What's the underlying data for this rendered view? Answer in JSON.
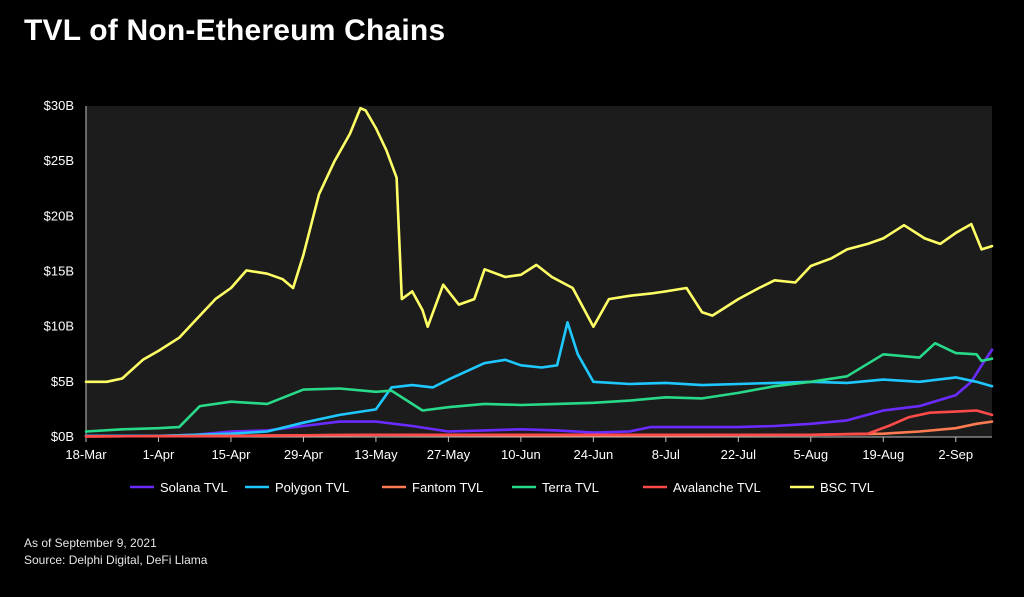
{
  "page": {
    "title": "TVL of Non-Ethereum Chains",
    "footnote_date": "As of September 9, 2021",
    "footnote_source": "Source: Delphi Digital, DeFi Llama"
  },
  "chart_data": {
    "type": "line",
    "title": "TVL of Non-Ethereum Chains",
    "xlabel": "",
    "ylabel": "",
    "ylim": [
      0,
      30
    ],
    "y_unit": "$B (billions USD)",
    "y_ticks": [
      "$0B",
      "$5B",
      "$10B",
      "$15B",
      "$20B",
      "$25B",
      "$30B"
    ],
    "x_ticks": [
      "18-Mar",
      "1-Apr",
      "15-Apr",
      "29-Apr",
      "13-May",
      "27-May",
      "10-Jun",
      "24-Jun",
      "8-Jul",
      "22-Jul",
      "5-Aug",
      "19-Aug",
      "2-Sep"
    ],
    "x_range": [
      "2021-03-18",
      "2021-09-09"
    ],
    "grid": false,
    "legend_position": "bottom",
    "series": [
      {
        "name": "Solana TVL",
        "color": "#6a2bff",
        "points": [
          [
            "2021-03-18",
            0.1
          ],
          [
            "2021-04-01",
            0.1
          ],
          [
            "2021-04-08",
            0.2
          ],
          [
            "2021-04-15",
            0.5
          ],
          [
            "2021-04-22",
            0.6
          ],
          [
            "2021-04-29",
            1.0
          ],
          [
            "2021-05-06",
            1.4
          ],
          [
            "2021-05-13",
            1.4
          ],
          [
            "2021-05-20",
            1.0
          ],
          [
            "2021-05-27",
            0.5
          ],
          [
            "2021-06-03",
            0.6
          ],
          [
            "2021-06-10",
            0.7
          ],
          [
            "2021-06-17",
            0.6
          ],
          [
            "2021-06-24",
            0.4
          ],
          [
            "2021-07-01",
            0.5
          ],
          [
            "2021-07-05",
            0.9
          ],
          [
            "2021-07-15",
            0.9
          ],
          [
            "2021-07-22",
            0.9
          ],
          [
            "2021-07-29",
            1.0
          ],
          [
            "2021-08-05",
            1.2
          ],
          [
            "2021-08-12",
            1.5
          ],
          [
            "2021-08-19",
            2.4
          ],
          [
            "2021-08-26",
            2.8
          ],
          [
            "2021-09-02",
            3.8
          ],
          [
            "2021-09-05",
            5.0
          ],
          [
            "2021-09-07",
            6.5
          ],
          [
            "2021-09-09",
            7.9
          ]
        ]
      },
      {
        "name": "Polygon TVL",
        "color": "#1ec8ff",
        "points": [
          [
            "2021-03-18",
            0.1
          ],
          [
            "2021-04-01",
            0.1
          ],
          [
            "2021-04-15",
            0.3
          ],
          [
            "2021-04-22",
            0.5
          ],
          [
            "2021-04-29",
            1.3
          ],
          [
            "2021-05-06",
            2.0
          ],
          [
            "2021-05-13",
            2.5
          ],
          [
            "2021-05-16",
            4.5
          ],
          [
            "2021-05-20",
            4.7
          ],
          [
            "2021-05-24",
            4.5
          ],
          [
            "2021-05-27",
            5.2
          ],
          [
            "2021-06-03",
            6.7
          ],
          [
            "2021-06-07",
            7.0
          ],
          [
            "2021-06-10",
            6.5
          ],
          [
            "2021-06-14",
            6.3
          ],
          [
            "2021-06-17",
            6.5
          ],
          [
            "2021-06-19",
            10.4
          ],
          [
            "2021-06-21",
            7.5
          ],
          [
            "2021-06-24",
            5.0
          ],
          [
            "2021-07-01",
            4.8
          ],
          [
            "2021-07-08",
            4.9
          ],
          [
            "2021-07-15",
            4.7
          ],
          [
            "2021-07-22",
            4.8
          ],
          [
            "2021-07-29",
            4.9
          ],
          [
            "2021-08-05",
            5.0
          ],
          [
            "2021-08-12",
            4.9
          ],
          [
            "2021-08-19",
            5.2
          ],
          [
            "2021-08-26",
            5.0
          ],
          [
            "2021-09-02",
            5.4
          ],
          [
            "2021-09-06",
            5.0
          ],
          [
            "2021-09-09",
            4.6
          ]
        ]
      },
      {
        "name": "Fantom TVL",
        "color": "#ff7b52",
        "points": [
          [
            "2021-03-18",
            0.05
          ],
          [
            "2021-04-15",
            0.1
          ],
          [
            "2021-05-13",
            0.2
          ],
          [
            "2021-06-10",
            0.15
          ],
          [
            "2021-07-08",
            0.15
          ],
          [
            "2021-08-05",
            0.2
          ],
          [
            "2021-08-19",
            0.3
          ],
          [
            "2021-08-26",
            0.5
          ],
          [
            "2021-09-02",
            0.8
          ],
          [
            "2021-09-06",
            1.2
          ],
          [
            "2021-09-09",
            1.4
          ]
        ]
      },
      {
        "name": "Terra TVL",
        "color": "#28d98a",
        "points": [
          [
            "2021-03-18",
            0.5
          ],
          [
            "2021-03-25",
            0.7
          ],
          [
            "2021-04-01",
            0.8
          ],
          [
            "2021-04-05",
            0.9
          ],
          [
            "2021-04-09",
            2.8
          ],
          [
            "2021-04-15",
            3.2
          ],
          [
            "2021-04-22",
            3.0
          ],
          [
            "2021-04-29",
            4.3
          ],
          [
            "2021-05-06",
            4.4
          ],
          [
            "2021-05-13",
            4.1
          ],
          [
            "2021-05-16",
            4.2
          ],
          [
            "2021-05-20",
            3.0
          ],
          [
            "2021-05-22",
            2.4
          ],
          [
            "2021-05-27",
            2.7
          ],
          [
            "2021-06-03",
            3.0
          ],
          [
            "2021-06-10",
            2.9
          ],
          [
            "2021-06-17",
            3.0
          ],
          [
            "2021-06-24",
            3.1
          ],
          [
            "2021-07-01",
            3.3
          ],
          [
            "2021-07-08",
            3.6
          ],
          [
            "2021-07-15",
            3.5
          ],
          [
            "2021-07-22",
            4.0
          ],
          [
            "2021-07-29",
            4.6
          ],
          [
            "2021-08-05",
            5.0
          ],
          [
            "2021-08-12",
            5.5
          ],
          [
            "2021-08-19",
            7.5
          ],
          [
            "2021-08-26",
            7.2
          ],
          [
            "2021-08-29",
            8.5
          ],
          [
            "2021-09-02",
            7.6
          ],
          [
            "2021-09-06",
            7.5
          ],
          [
            "2021-09-07",
            6.9
          ],
          [
            "2021-09-09",
            7.1
          ]
        ]
      },
      {
        "name": "Avalanche TVL",
        "color": "#ff4a4a",
        "points": [
          [
            "2021-03-18",
            0.05
          ],
          [
            "2021-04-15",
            0.1
          ],
          [
            "2021-05-13",
            0.2
          ],
          [
            "2021-06-10",
            0.2
          ],
          [
            "2021-07-08",
            0.2
          ],
          [
            "2021-08-05",
            0.2
          ],
          [
            "2021-08-16",
            0.3
          ],
          [
            "2021-08-20",
            1.0
          ],
          [
            "2021-08-24",
            1.8
          ],
          [
            "2021-08-28",
            2.2
          ],
          [
            "2021-09-02",
            2.3
          ],
          [
            "2021-09-06",
            2.4
          ],
          [
            "2021-09-09",
            2.0
          ]
        ]
      },
      {
        "name": "BSC TVL",
        "color": "#ffff66",
        "points": [
          [
            "2021-03-18",
            5.0
          ],
          [
            "2021-03-22",
            5.0
          ],
          [
            "2021-03-25",
            5.3
          ],
          [
            "2021-03-29",
            7.0
          ],
          [
            "2021-04-01",
            7.8
          ],
          [
            "2021-04-05",
            9.0
          ],
          [
            "2021-04-08",
            10.5
          ],
          [
            "2021-04-12",
            12.5
          ],
          [
            "2021-04-15",
            13.5
          ],
          [
            "2021-04-18",
            15.1
          ],
          [
            "2021-04-22",
            14.8
          ],
          [
            "2021-04-25",
            14.3
          ],
          [
            "2021-04-27",
            13.5
          ],
          [
            "2021-04-29",
            16.5
          ],
          [
            "2021-05-02",
            22.0
          ],
          [
            "2021-05-05",
            25.0
          ],
          [
            "2021-05-08",
            27.5
          ],
          [
            "2021-05-10",
            29.8
          ],
          [
            "2021-05-11",
            29.6
          ],
          [
            "2021-05-13",
            28.0
          ],
          [
            "2021-05-15",
            26.0
          ],
          [
            "2021-05-17",
            23.5
          ],
          [
            "2021-05-18",
            12.5
          ],
          [
            "2021-05-20",
            13.2
          ],
          [
            "2021-05-22",
            11.5
          ],
          [
            "2021-05-23",
            10.0
          ],
          [
            "2021-05-26",
            13.8
          ],
          [
            "2021-05-29",
            12.0
          ],
          [
            "2021-06-01",
            12.5
          ],
          [
            "2021-06-03",
            15.2
          ],
          [
            "2021-06-07",
            14.5
          ],
          [
            "2021-06-10",
            14.7
          ],
          [
            "2021-06-13",
            15.6
          ],
          [
            "2021-06-16",
            14.5
          ],
          [
            "2021-06-20",
            13.5
          ],
          [
            "2021-06-24",
            10.0
          ],
          [
            "2021-06-27",
            12.5
          ],
          [
            "2021-07-01",
            12.8
          ],
          [
            "2021-07-05",
            13.0
          ],
          [
            "2021-07-08",
            13.2
          ],
          [
            "2021-07-12",
            13.5
          ],
          [
            "2021-07-15",
            11.3
          ],
          [
            "2021-07-17",
            11.0
          ],
          [
            "2021-07-22",
            12.5
          ],
          [
            "2021-07-26",
            13.5
          ],
          [
            "2021-07-29",
            14.2
          ],
          [
            "2021-08-02",
            14.0
          ],
          [
            "2021-08-05",
            15.5
          ],
          [
            "2021-08-09",
            16.2
          ],
          [
            "2021-08-12",
            17.0
          ],
          [
            "2021-08-16",
            17.5
          ],
          [
            "2021-08-19",
            18.0
          ],
          [
            "2021-08-23",
            19.2
          ],
          [
            "2021-08-27",
            18.0
          ],
          [
            "2021-08-30",
            17.5
          ],
          [
            "2021-09-02",
            18.5
          ],
          [
            "2021-09-05",
            19.3
          ],
          [
            "2021-09-07",
            17.0
          ],
          [
            "2021-09-09",
            17.3
          ]
        ]
      }
    ]
  }
}
